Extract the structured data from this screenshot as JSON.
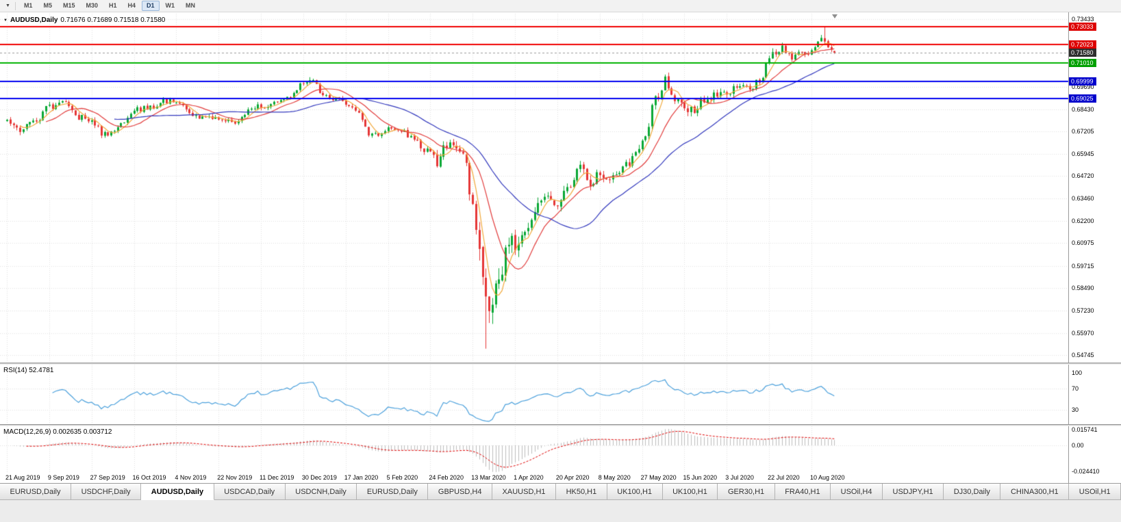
{
  "toolbar": {
    "dropdown_icon": "▼",
    "timeframes": [
      "M1",
      "M5",
      "M15",
      "M30",
      "H1",
      "H4",
      "D1",
      "W1",
      "MN"
    ],
    "active_timeframe": "D1"
  },
  "chart_header": {
    "collapse_icon": "▼",
    "symbol": "AUDUSD,Daily",
    "ohlc": "0.71676 0.71689 0.71518 0.71580"
  },
  "panes": {
    "rsi": {
      "label": "RSI(14) 52.4781",
      "axis": [
        {
          "text": "100",
          "value": 100
        },
        {
          "text": "70",
          "value": 70
        },
        {
          "text": "30",
          "value": 30
        }
      ],
      "levels": [
        70,
        30
      ]
    },
    "macd": {
      "label": "MACD(12,26,9) 0.002635 0.003712",
      "axis_max": "0.015741",
      "axis_zero": "0.00",
      "axis_min": "-0.024410"
    }
  },
  "tabs": {
    "items": [
      "EURUSD,Daily",
      "USDCHF,Daily",
      "AUDUSD,Daily",
      "USDCAD,Daily",
      "USDCNH,Daily",
      "EURUSD,Daily",
      "GBPUSD,H4",
      "XAUUSD,H1",
      "HK50,H1",
      "UK100,H1",
      "UK100,H1",
      "GER30,H1",
      "FRA40,H1",
      "USOil,H4",
      "USDJPY,H1",
      "DJ30,Daily",
      "CHINA300,H1",
      "USOil,H1"
    ],
    "active_index": 2
  },
  "chart_data": {
    "type": "candlestick",
    "title": "AUDUSD Daily",
    "x_labels": [
      "21 Aug 2019",
      "9 Sep 2019",
      "27 Sep 2019",
      "16 Oct 2019",
      "4 Nov 2019",
      "22 Nov 2019",
      "11 Dec 2019",
      "30 Dec 2019",
      "17 Jan 2020",
      "5 Feb 2020",
      "24 Feb 2020",
      "13 Mar 2020",
      "1 Apr 2020",
      "20 Apr 2020",
      "8 May 2020",
      "27 May 2020",
      "15 Jun 2020",
      "3 Jul 2020",
      "22 Jul 2020",
      "10 Aug 2020"
    ],
    "y_axis_labels": [
      "0.73433",
      "0.69690",
      "0.68430",
      "0.67205",
      "0.65945",
      "0.64720",
      "0.63460",
      "0.62200",
      "0.60975",
      "0.59715",
      "0.58490",
      "0.57230",
      "0.55970",
      "0.54745"
    ],
    "y_range": [
      0.544,
      0.7368
    ],
    "current": {
      "open": 0.71676,
      "high": 0.71689,
      "low": 0.71518,
      "close": 0.7158
    },
    "horizontal_lines": [
      {
        "label": "0.73033",
        "price": 0.73033,
        "color": "#f00000",
        "style": "solid",
        "tag": "#dd0000"
      },
      {
        "label": "0.72023",
        "price": 0.72023,
        "color": "#f00000",
        "style": "solid",
        "tag": "#dd0000"
      },
      {
        "label": "0.71580",
        "price": 0.7158,
        "color": "#999999",
        "style": "dashed",
        "tag": "#2f2f2f"
      },
      {
        "label": "0.71010",
        "price": 0.7101,
        "color": "#00b300",
        "style": "solid",
        "tag": "#00a000"
      },
      {
        "label": "0.69999",
        "price": 0.69999,
        "color": "#0000f0",
        "style": "solid",
        "tag": "#0000cc"
      },
      {
        "label": "0.69025",
        "price": 0.69025,
        "color": "#0000f0",
        "style": "solid",
        "tag": "#0000cc"
      }
    ],
    "candles_per_x_label": 13,
    "num_candles": 255,
    "candle_colors": {
      "up": "#09a834",
      "down": "#e53535"
    },
    "moving_averages": [
      {
        "period": 5,
        "color": "#f2a93b"
      },
      {
        "period": 13,
        "color": "#e23b3b"
      },
      {
        "period": 34,
        "color": "#3137bd"
      }
    ],
    "indicators": {
      "rsi": {
        "name": "RSI",
        "period": 14,
        "display_value": "52.4781",
        "color": "#4aa0dc",
        "levels": [
          70,
          30
        ],
        "range": [
          0,
          100
        ]
      },
      "macd": {
        "name": "MACD",
        "fast": 12,
        "slow": 26,
        "signal": 9,
        "display_values": "0.002635 0.003712",
        "axis_values": [
          0.015741,
          0.0,
          -0.02441
        ],
        "histogram_color": "#bdbdbd",
        "signal_color": "#e00000"
      }
    },
    "price_path_anchors": [
      [
        0,
        0.6775,
        0.0035
      ],
      [
        4,
        0.6722,
        0.0035
      ],
      [
        8,
        0.6768,
        0.0032
      ],
      [
        13,
        0.6858,
        0.003
      ],
      [
        17,
        0.6882,
        0.003
      ],
      [
        22,
        0.68,
        0.003
      ],
      [
        26,
        0.6772,
        0.003
      ],
      [
        30,
        0.6702,
        0.003
      ],
      [
        35,
        0.6752,
        0.003
      ],
      [
        39,
        0.6838,
        0.0028
      ],
      [
        44,
        0.6855,
        0.0026
      ],
      [
        48,
        0.6888,
        0.0026
      ],
      [
        52,
        0.6893,
        0.0026
      ],
      [
        57,
        0.6818,
        0.0026
      ],
      [
        61,
        0.6792,
        0.0026
      ],
      [
        65,
        0.6786,
        0.0026
      ],
      [
        70,
        0.6768,
        0.0026
      ],
      [
        74,
        0.6836,
        0.0026
      ],
      [
        78,
        0.6862,
        0.0026
      ],
      [
        83,
        0.6878,
        0.0026
      ],
      [
        87,
        0.6918,
        0.0026
      ],
      [
        91,
        0.6988,
        0.0026
      ],
      [
        93,
        0.7008,
        0.0026
      ],
      [
        97,
        0.6932,
        0.0026
      ],
      [
        101,
        0.6898,
        0.0026
      ],
      [
        104,
        0.6872,
        0.0026
      ],
      [
        108,
        0.6818,
        0.0028
      ],
      [
        112,
        0.6692,
        0.003
      ],
      [
        117,
        0.6738,
        0.0028
      ],
      [
        121,
        0.6722,
        0.0028
      ],
      [
        125,
        0.668,
        0.003
      ],
      [
        128,
        0.6618,
        0.0036
      ],
      [
        130,
        0.6598,
        0.004
      ],
      [
        132,
        0.6545,
        0.0046
      ],
      [
        134,
        0.6648,
        0.005
      ],
      [
        137,
        0.6638,
        0.0048
      ],
      [
        140,
        0.658,
        0.005
      ],
      [
        143,
        0.6318,
        0.009
      ],
      [
        145,
        0.612,
        0.013
      ],
      [
        147,
        0.5782,
        0.017
      ],
      [
        149,
        0.5825,
        0.014
      ],
      [
        152,
        0.5975,
        0.011
      ],
      [
        154,
        0.6128,
        0.009
      ],
      [
        156,
        0.6068,
        0.0085
      ],
      [
        159,
        0.618,
        0.007
      ],
      [
        162,
        0.6282,
        0.0062
      ],
      [
        166,
        0.6352,
        0.0056
      ],
      [
        169,
        0.6328,
        0.005
      ],
      [
        172,
        0.642,
        0.005
      ],
      [
        176,
        0.6508,
        0.0048
      ],
      [
        179,
        0.6422,
        0.0048
      ],
      [
        182,
        0.6488,
        0.0046
      ],
      [
        186,
        0.6452,
        0.0044
      ],
      [
        190,
        0.6532,
        0.0042
      ],
      [
        195,
        0.6648,
        0.0044
      ],
      [
        199,
        0.6892,
        0.005
      ],
      [
        202,
        0.6998,
        0.005
      ],
      [
        205,
        0.6882,
        0.0048
      ],
      [
        208,
        0.6858,
        0.0046
      ],
      [
        211,
        0.6832,
        0.0044
      ],
      [
        214,
        0.6898,
        0.004
      ],
      [
        218,
        0.6922,
        0.0038
      ],
      [
        221,
        0.6942,
        0.0038
      ],
      [
        225,
        0.6978,
        0.0036
      ],
      [
        228,
        0.6968,
        0.0036
      ],
      [
        231,
        0.6998,
        0.0036
      ],
      [
        234,
        0.7138,
        0.0038
      ],
      [
        238,
        0.7188,
        0.0036
      ],
      [
        241,
        0.7122,
        0.0036
      ],
      [
        244,
        0.7162,
        0.0034
      ],
      [
        247,
        0.7156,
        0.0034
      ],
      [
        250,
        0.7228,
        0.0034
      ],
      [
        252,
        0.7198,
        0.0032
      ],
      [
        254,
        0.7158,
        0.003
      ]
    ],
    "spikes": [
      {
        "i": 93,
        "high": 0.7022
      },
      {
        "i": 147,
        "low": 0.551
      },
      {
        "i": 202,
        "high": 0.7015
      },
      {
        "i": 251,
        "high": 0.73
      }
    ]
  }
}
